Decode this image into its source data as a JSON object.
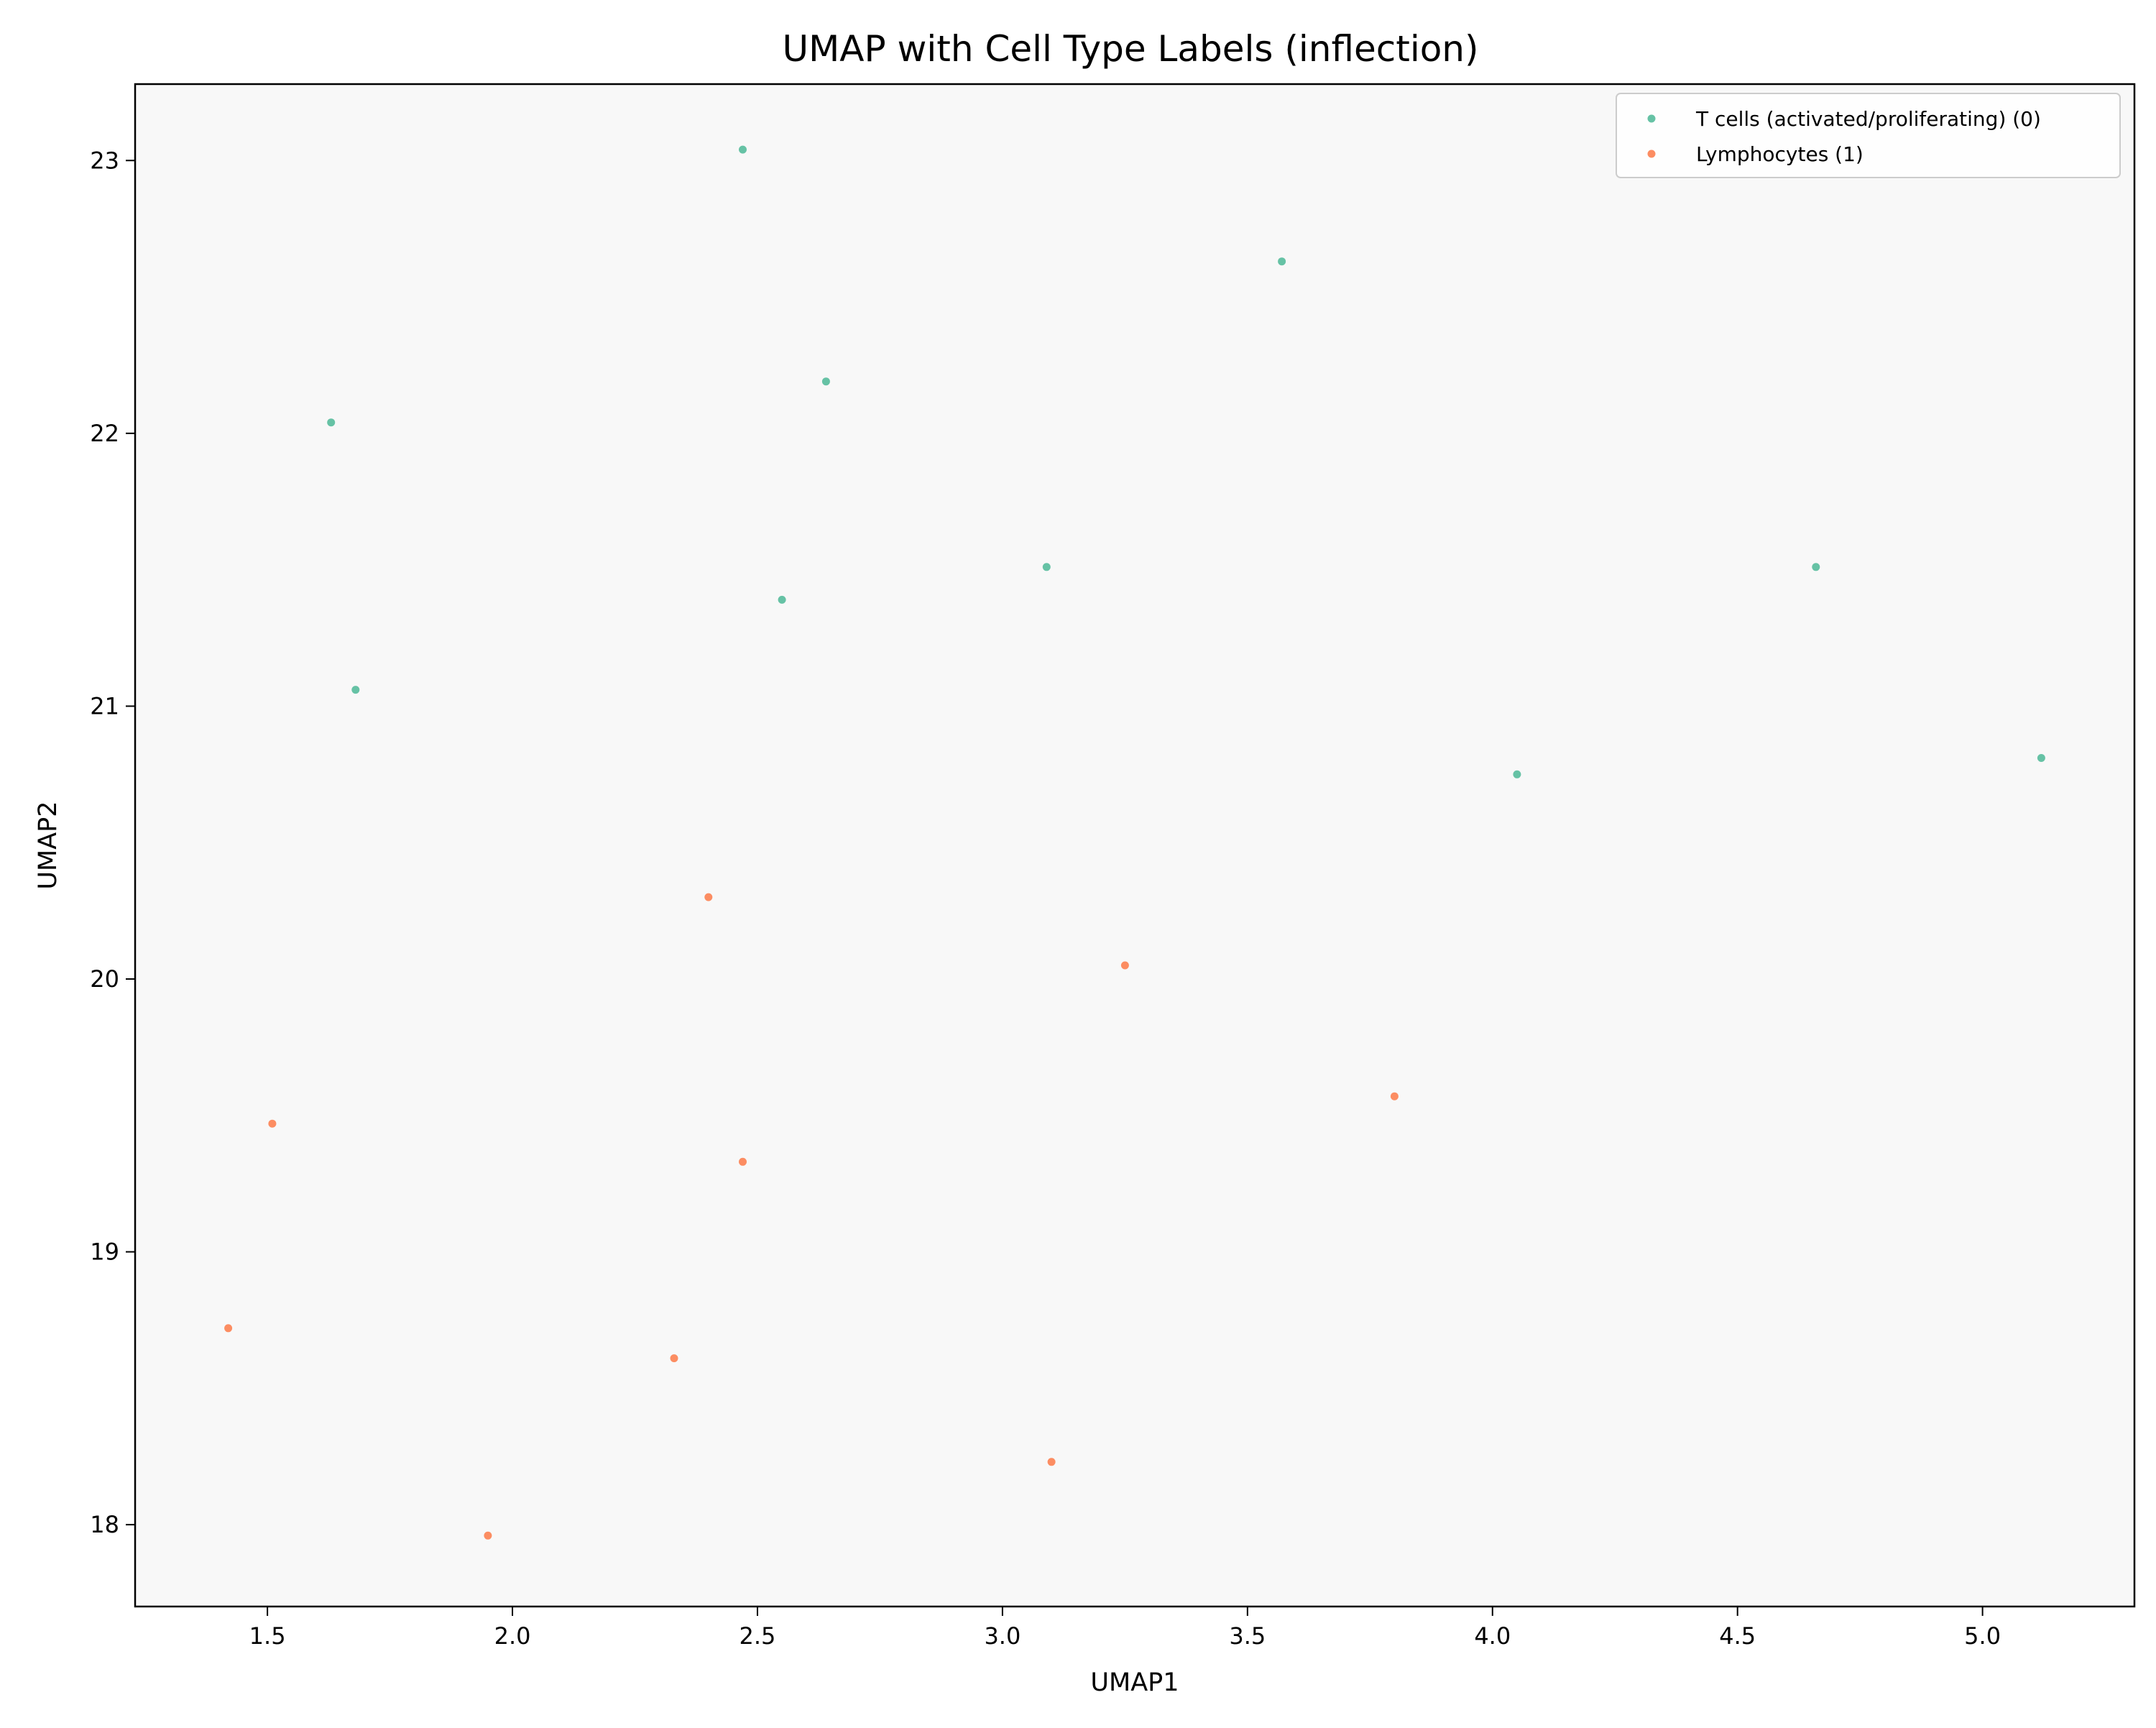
{
  "chart_data": {
    "type": "scatter",
    "title": "UMAP with Cell Type Labels (inflection)",
    "xlabel": "UMAP1",
    "ylabel": "UMAP2",
    "xlim": [
      1.23,
      5.31
    ],
    "ylim": [
      17.7,
      23.28
    ],
    "xticks": [
      1.5,
      2.0,
      2.5,
      3.0,
      3.5,
      4.0,
      4.5,
      5.0
    ],
    "xtick_labels": [
      "1.5",
      "2.0",
      "2.5",
      "3.0",
      "3.5",
      "4.0",
      "4.5",
      "5.0"
    ],
    "yticks": [
      18,
      19,
      20,
      21,
      22,
      23
    ],
    "ytick_labels": [
      "18",
      "19",
      "20",
      "21",
      "22",
      "23"
    ],
    "grid": false,
    "legend_position": "top-right",
    "background": "#f8f8f8",
    "series": [
      {
        "name": "T cells (activated/proliferating) (0)",
        "color": "#66c2a5",
        "points": [
          [
            2.47,
            23.04
          ],
          [
            3.57,
            22.63
          ],
          [
            2.64,
            22.19
          ],
          [
            1.63,
            22.04
          ],
          [
            3.09,
            21.51
          ],
          [
            4.66,
            21.51
          ],
          [
            2.55,
            21.39
          ],
          [
            1.68,
            21.06
          ],
          [
            5.12,
            20.81
          ],
          [
            4.05,
            20.75
          ]
        ]
      },
      {
        "name": "Lymphocytes (1)",
        "color": "#fc8d62",
        "points": [
          [
            2.4,
            20.3
          ],
          [
            3.25,
            20.05
          ],
          [
            3.8,
            19.57
          ],
          [
            1.51,
            19.47
          ],
          [
            2.47,
            19.33
          ],
          [
            1.42,
            18.72
          ],
          [
            2.33,
            18.61
          ],
          [
            3.1,
            18.23
          ],
          [
            1.95,
            17.96
          ]
        ]
      }
    ]
  }
}
